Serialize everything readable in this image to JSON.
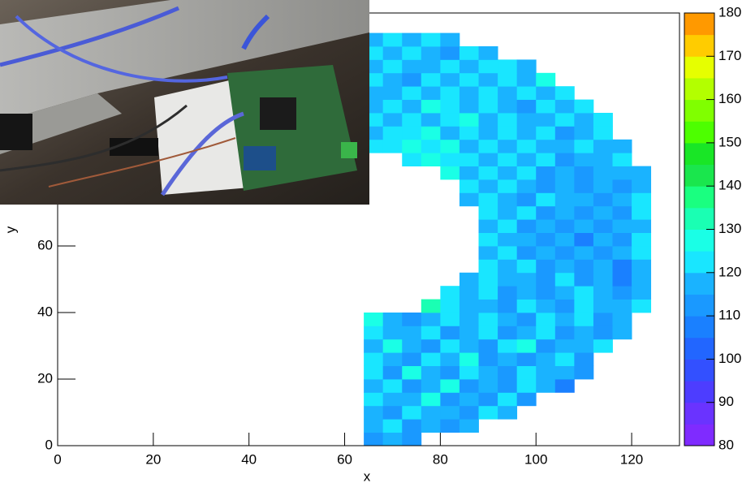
{
  "chart_data": {
    "type": "heatmap",
    "x_label": "x",
    "y_label": "y",
    "xlim": [
      0,
      130
    ],
    "ylim": [
      0,
      130
    ],
    "xticks": [
      0,
      20,
      40,
      60,
      80,
      100,
      120
    ],
    "yticks": [
      0,
      20,
      40,
      60
    ],
    "zlim": [
      80,
      180
    ],
    "zticks": [
      80,
      90,
      100,
      110,
      120,
      130,
      140,
      150,
      160,
      170,
      180
    ],
    "palette": [
      "#7f2bff",
      "#6a33ff",
      "#4d3dff",
      "#3350ff",
      "#2266ff",
      "#1a80ff",
      "#1a99ff",
      "#1ab3ff",
      "#19e6ff",
      "#1affe6",
      "#1affb3",
      "#1aff80",
      "#1ae64d",
      "#19e626",
      "#4dff00",
      "#80ff00",
      "#b3ff00",
      "#e6ff00",
      "#ffcc00",
      "#ff9900"
    ],
    "xbins": [
      64,
      68,
      72,
      76,
      80,
      84,
      88,
      92,
      96,
      100,
      104,
      108,
      112,
      116,
      120,
      124,
      128
    ],
    "ybins": [
      0,
      4,
      8,
      12,
      16,
      20,
      24,
      28,
      32,
      36,
      40,
      44,
      48,
      52,
      56,
      60,
      64,
      68,
      72,
      76,
      80,
      84,
      88,
      92,
      96,
      100,
      104,
      108,
      112,
      116,
      120,
      124,
      128
    ],
    "z": [
      [
        114,
        118,
        112,
        null,
        null,
        null,
        null,
        null,
        null,
        null,
        null,
        null,
        null,
        null,
        null,
        null
      ],
      [
        116,
        121,
        113,
        118,
        110,
        117,
        null,
        null,
        null,
        null,
        null,
        null,
        null,
        null,
        null,
        null
      ],
      [
        119,
        112,
        124,
        115,
        117,
        111,
        120,
        116,
        null,
        null,
        null,
        null,
        null,
        null,
        null,
        null
      ],
      [
        122,
        115,
        118,
        126,
        112,
        119,
        114,
        121,
        110,
        null,
        null,
        null,
        null,
        null,
        null,
        null
      ],
      [
        117,
        123,
        111,
        119,
        125,
        114,
        118,
        112,
        120,
        116,
        109,
        null,
        null,
        null,
        null,
        null
      ],
      [
        120,
        114,
        127,
        116,
        113,
        121,
        118,
        110,
        123,
        115,
        119,
        112,
        null,
        null,
        null,
        null
      ],
      [
        123,
        118,
        112,
        121,
        115,
        128,
        114,
        119,
        111,
        117,
        122,
        114,
        null,
        null,
        null,
        null
      ],
      [
        118,
        125,
        116,
        110,
        122,
        117,
        113,
        120,
        126,
        112,
        118,
        115,
        121,
        null,
        null,
        null
      ],
      [
        121,
        115,
        119,
        124,
        113,
        118,
        122,
        110,
        117,
        121,
        114,
        119,
        111,
        116,
        null,
        null
      ],
      [
        126,
        119,
        113,
        117,
        121,
        115,
        124,
        118,
        112,
        120,
        116,
        122,
        113,
        118,
        null,
        null
      ],
      [
        null,
        null,
        null,
        130,
        121,
        116,
        119,
        113,
        122,
        117,
        111,
        120,
        115,
        118,
        123,
        null
      ],
      [
        null,
        null,
        null,
        null,
        124,
        118,
        121,
        114,
        119,
        112,
        116,
        121,
        117,
        110,
        115,
        null
      ],
      [
        null,
        null,
        null,
        null,
        null,
        119,
        123,
        115,
        118,
        113,
        120,
        114,
        117,
        109,
        116,
        null
      ],
      [
        null,
        null,
        null,
        null,
        null,
        null,
        121,
        116,
        120,
        113,
        118,
        111,
        115,
        108,
        117,
        null
      ],
      [
        null,
        null,
        null,
        null,
        null,
        null,
        118,
        122,
        114,
        119,
        112,
        117,
        110,
        116,
        121,
        null
      ],
      [
        null,
        null,
        null,
        null,
        null,
        null,
        120,
        115,
        119,
        111,
        116,
        109,
        118,
        113,
        123,
        null
      ],
      [
        null,
        null,
        null,
        null,
        null,
        null,
        117,
        121,
        113,
        118,
        110,
        115,
        112,
        119,
        116,
        null
      ],
      [
        null,
        null,
        null,
        null,
        null,
        null,
        123,
        116,
        120,
        114,
        118,
        111,
        117,
        114,
        120,
        null
      ],
      [
        null,
        null,
        null,
        null,
        null,
        119,
        122,
        117,
        113,
        120,
        115,
        118,
        112,
        116,
        121,
        null
      ],
      [
        null,
        null,
        null,
        null,
        null,
        121,
        118,
        124,
        116,
        114,
        119,
        113,
        117,
        110,
        118,
        null
      ],
      [
        null,
        null,
        null,
        null,
        125,
        119,
        122,
        117,
        121,
        114,
        118,
        112,
        116,
        119,
        115,
        null
      ],
      [
        null,
        null,
        122,
        127,
        120,
        123,
        118,
        124,
        116,
        120,
        114,
        119,
        117,
        121,
        null,
        null
      ],
      [
        120,
        124,
        129,
        121,
        126,
        119,
        123,
        117,
        121,
        115,
        119,
        122,
        116,
        119,
        null,
        null
      ],
      [
        118,
        123,
        120,
        127,
        119,
        124,
        118,
        122,
        116,
        120,
        114,
        118,
        121,
        null,
        null,
        null
      ],
      [
        121,
        117,
        124,
        119,
        122,
        128,
        117,
        121,
        115,
        119,
        123,
        116,
        120,
        null,
        null,
        null
      ],
      [
        116,
        122,
        118,
        125,
        120,
        117,
        123,
        119,
        114,
        121,
        116,
        122,
        null,
        null,
        null,
        null
      ],
      [
        119,
        115,
        121,
        117,
        124,
        118,
        120,
        115,
        122,
        117,
        120,
        null,
        null,
        null,
        null,
        null
      ],
      [
        122,
        118,
        114,
        120,
        116,
        121,
        117,
        123,
        118,
        125,
        null,
        null,
        null,
        null,
        null,
        null
      ],
      [
        117,
        121,
        119,
        115,
        122,
        118,
        124,
        120,
        116,
        null,
        null,
        null,
        null,
        null,
        null,
        null
      ],
      [
        120,
        116,
        122,
        118,
        114,
        121,
        117,
        null,
        null,
        null,
        null,
        null,
        null,
        null,
        null,
        null
      ],
      [
        118,
        122,
        115,
        120,
        117,
        null,
        null,
        null,
        null,
        null,
        null,
        null,
        null,
        null,
        null,
        null
      ],
      [
        null,
        null,
        null,
        null,
        null,
        null,
        null,
        null,
        null,
        null,
        null,
        null,
        null,
        null,
        null,
        null
      ]
    ]
  }
}
